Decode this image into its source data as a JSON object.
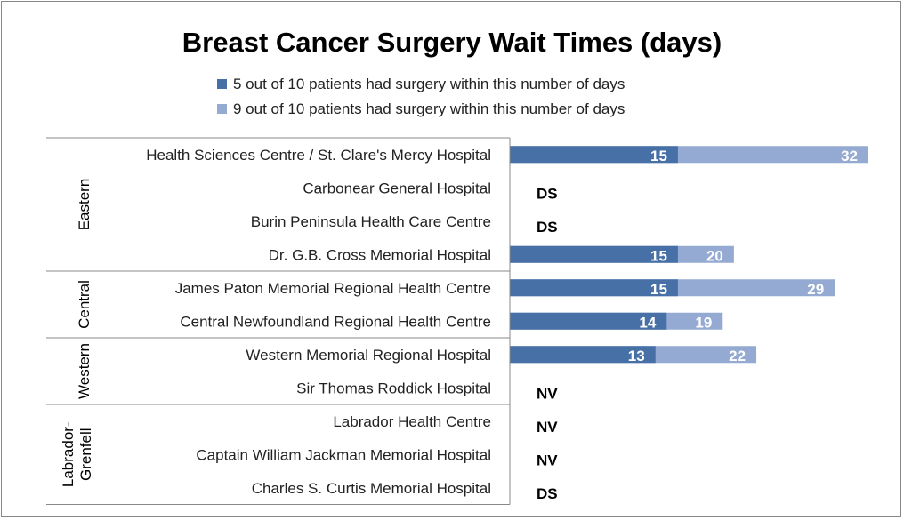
{
  "chart_data": {
    "type": "bar",
    "orientation": "horizontal",
    "stacked_overlap": true,
    "title": "Breast Cancer Surgery Wait Times (days)",
    "legend_position": "top",
    "grid": false,
    "xlim": [
      0,
      32
    ],
    "series": [
      {
        "name": "5 out of 10 patients had surgery within this number of days",
        "color": "#4771A6"
      },
      {
        "name": "9 out of 10 patients had surgery within this number of days",
        "color": "#94AAD2"
      }
    ],
    "groups": [
      {
        "label": "Eastern",
        "rows": [
          {
            "category": "Health Sciences Centre / St. Clare's Mercy Hospital",
            "p50": 15,
            "p90": 32,
            "note": null
          },
          {
            "category": "Carbonear General Hospital",
            "p50": null,
            "p90": null,
            "note": "DS"
          },
          {
            "category": "Burin Peninsula Health Care Centre",
            "p50": null,
            "p90": null,
            "note": "DS"
          },
          {
            "category": "Dr. G.B. Cross Memorial Hospital",
            "p50": 15,
            "p90": 20,
            "note": null
          }
        ]
      },
      {
        "label": "Central",
        "rows": [
          {
            "category": "James Paton Memorial Regional Health Centre",
            "p50": 15,
            "p90": 29,
            "note": null
          },
          {
            "category": "Central Newfoundland Regional Health Centre",
            "p50": 14,
            "p90": 19,
            "note": null
          }
        ]
      },
      {
        "label": "Western",
        "rows": [
          {
            "category": "Western Memorial Regional Hospital",
            "p50": 13,
            "p90": 22,
            "note": null
          },
          {
            "category": "Sir Thomas Roddick Hospital",
            "p50": null,
            "p90": null,
            "note": "NV"
          }
        ]
      },
      {
        "label": "Labrador-Grenfell",
        "label_lines": [
          "Labrador-",
          "Grenfell"
        ],
        "rows": [
          {
            "category": "Labrador Health Centre",
            "p50": null,
            "p90": null,
            "note": "NV"
          },
          {
            "category": "Captain William Jackman Memorial Hospital",
            "p50": null,
            "p90": null,
            "note": "NV"
          },
          {
            "category": "Charles S. Curtis Memorial Hospital",
            "p50": null,
            "p90": null,
            "note": "DS"
          }
        ]
      }
    ]
  }
}
